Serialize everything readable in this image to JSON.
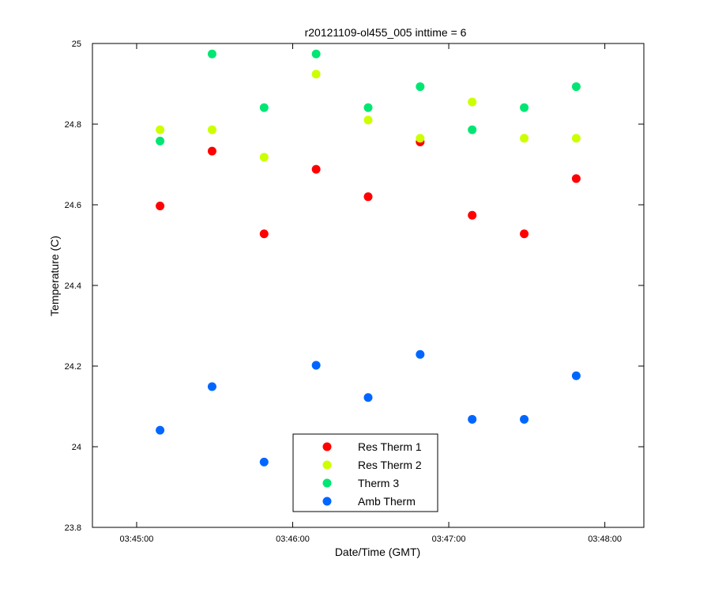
{
  "chart_data": {
    "type": "scatter",
    "title": "r20121109-ol455_005 inttime = 6",
    "xlabel": "Date/Time (GMT)",
    "ylabel": "Temperature (C)",
    "xlim": [
      "03:44:43",
      "03:48:15"
    ],
    "ylim": [
      23.8,
      25.0
    ],
    "x_ticks": [
      "03:45:00",
      "03:46:00",
      "03:47:00",
      "03:48:00"
    ],
    "y_ticks": [
      "23.8",
      "24",
      "24.2",
      "24.4",
      "24.6",
      "24.8",
      "25"
    ],
    "grid": false,
    "legend_position": "bottom-center",
    "x": [
      "03:45:09",
      "03:45:29",
      "03:45:49",
      "03:46:09",
      "03:46:29",
      "03:46:49",
      "03:47:09",
      "03:47:29",
      "03:47:49"
    ],
    "series": [
      {
        "name": "Res Therm 1",
        "color": "#ff0000",
        "values": [
          24.597,
          24.733,
          24.528,
          24.688,
          24.62,
          24.756,
          24.574,
          24.528,
          24.665
        ]
      },
      {
        "name": "Res Therm 2",
        "color": "#ccff00",
        "values": [
          24.786,
          24.786,
          24.718,
          24.924,
          24.81,
          24.765,
          24.855,
          24.765,
          24.765
        ]
      },
      {
        "name": "Therm 3",
        "color": "#00e673",
        "values": [
          24.758,
          24.974,
          24.841,
          24.974,
          24.841,
          24.893,
          24.786,
          24.841,
          24.893
        ]
      },
      {
        "name": "Amb Therm",
        "color": "#0066ff",
        "values": [
          24.041,
          24.149,
          23.962,
          24.202,
          24.122,
          24.229,
          24.068,
          24.068,
          24.176
        ]
      }
    ]
  }
}
